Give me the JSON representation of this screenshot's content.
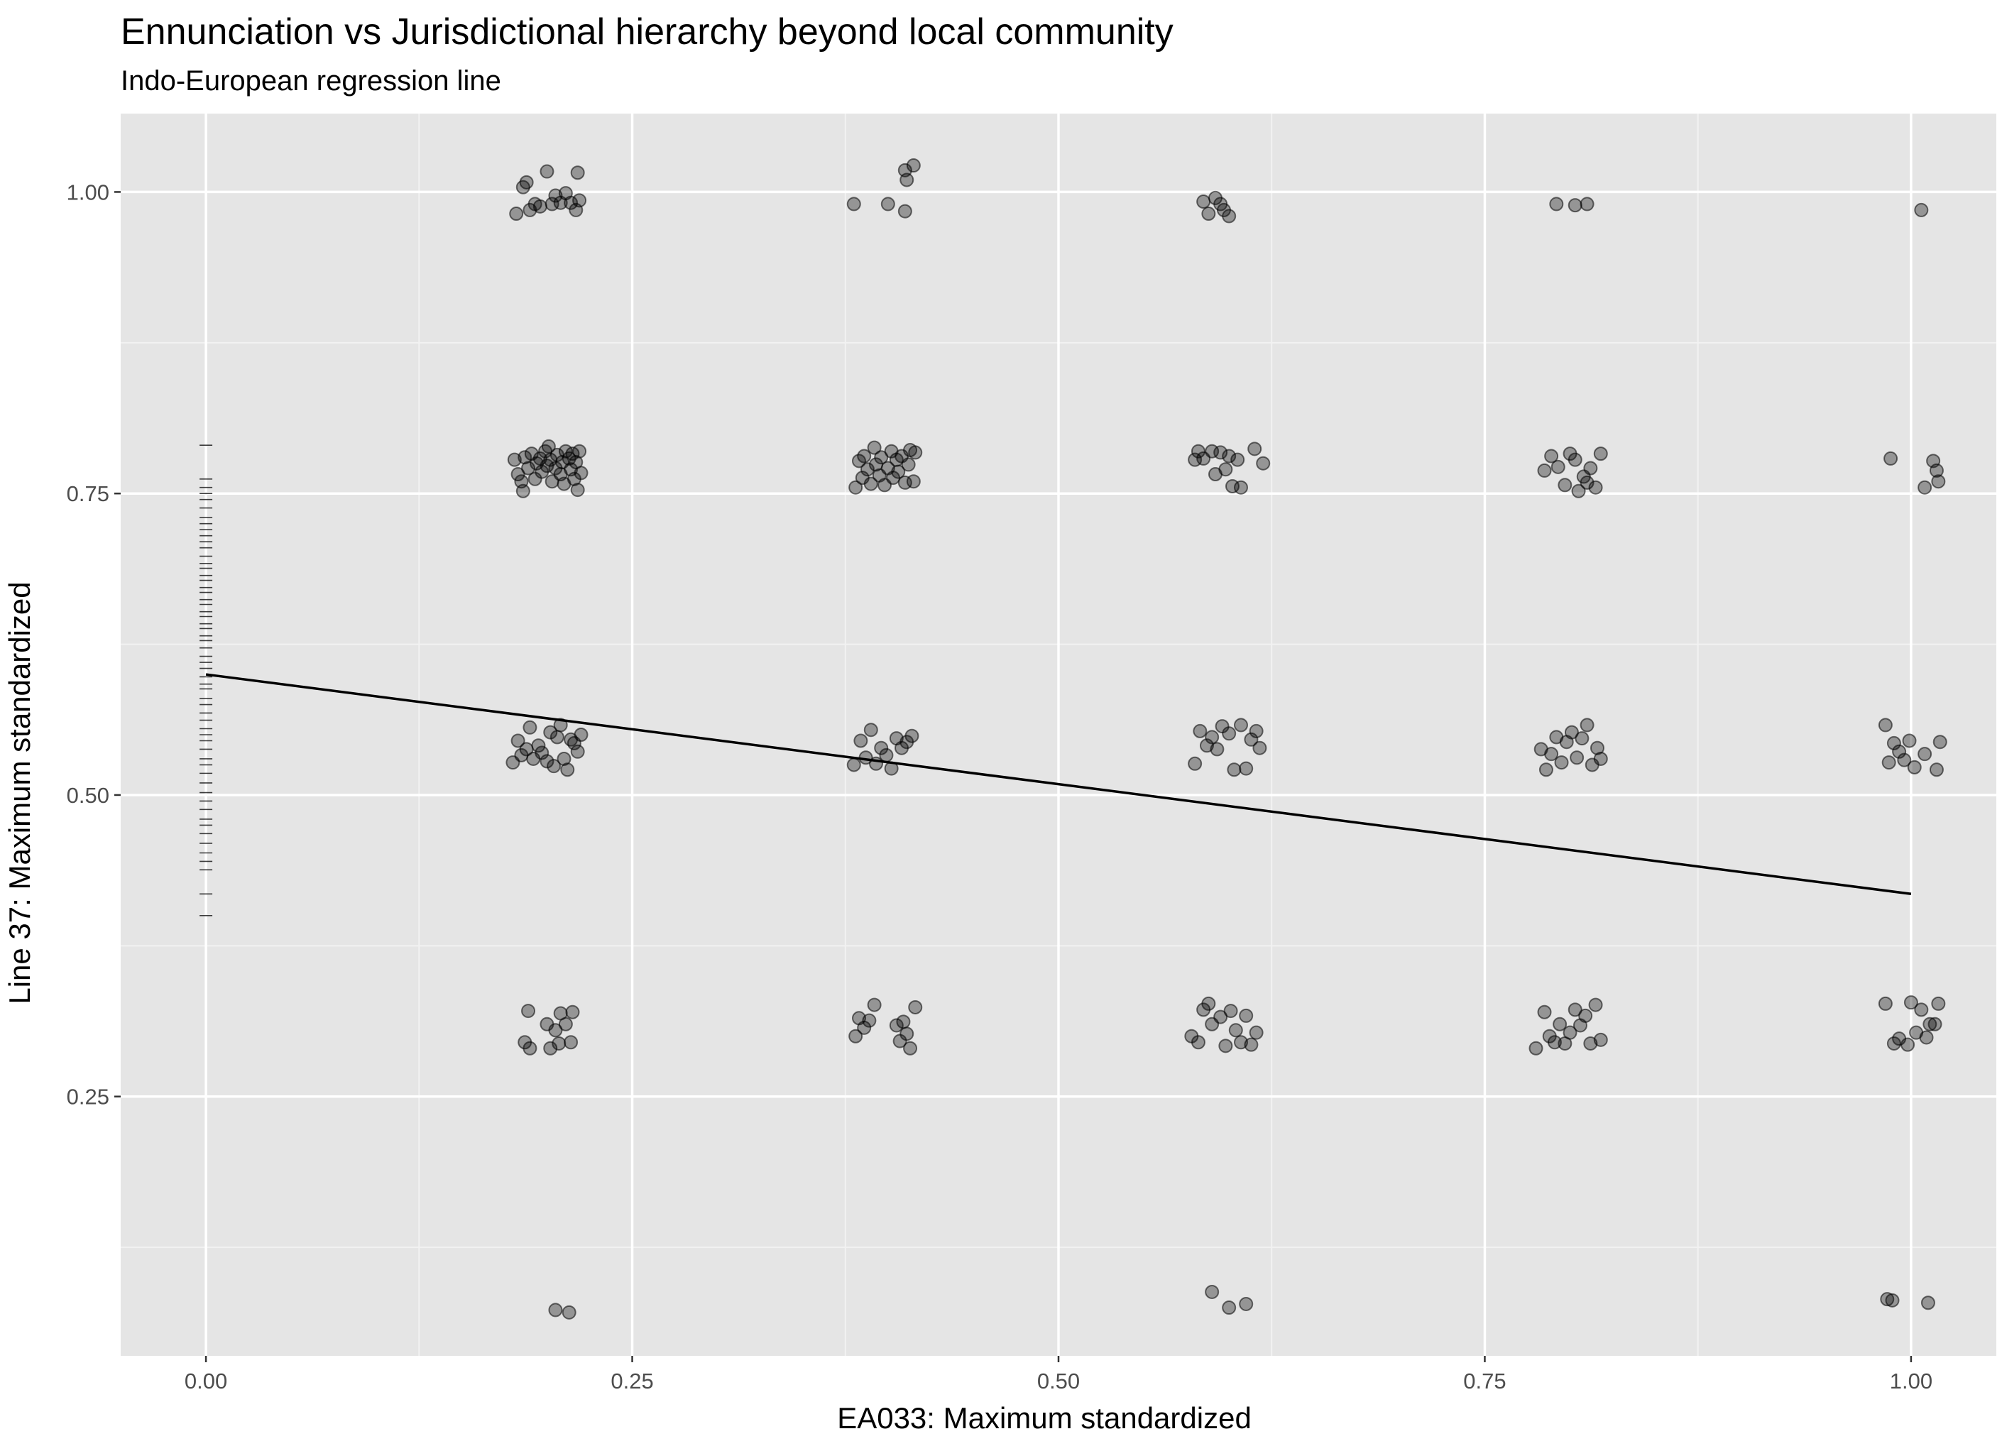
{
  "chart_data": {
    "type": "scatter",
    "title": "Ennunciation vs Jurisdictional hierarchy beyond local community",
    "subtitle": "Indo-European regression line",
    "xlabel": "EA033: Maximum standardized",
    "ylabel": "Line 37: Maximum standardized",
    "xlim": [
      -0.05,
      1.05
    ],
    "ylim": [
      0.035,
      1.065
    ],
    "x_ticks": [
      0.0,
      0.25,
      0.5,
      0.75,
      1.0
    ],
    "x_tick_labels": [
      "0.00",
      "0.25",
      "0.50",
      "0.75",
      "1.00"
    ],
    "y_ticks": [
      0.25,
      0.5,
      0.75,
      1.0
    ],
    "y_tick_labels": [
      "0.25",
      "0.50",
      "0.75",
      "1.00"
    ],
    "grid": true,
    "background": "#e5e5e5",
    "point_color": "#000000",
    "point_alpha": 0.35,
    "line_color": "#000000",
    "regression_line": {
      "x": [
        0.0,
        1.0
      ],
      "y": [
        0.6,
        0.418
      ]
    },
    "rug_y": [
      0.4,
      0.418,
      0.438,
      0.445,
      0.452,
      0.46,
      0.468,
      0.475,
      0.48,
      0.488,
      0.495,
      0.502,
      0.51,
      0.518,
      0.525,
      0.53,
      0.538,
      0.545,
      0.55,
      0.555,
      0.562,
      0.568,
      0.575,
      0.58,
      0.588,
      0.592,
      0.598,
      0.605,
      0.61,
      0.615,
      0.622,
      0.628,
      0.632,
      0.638,
      0.642,
      0.648,
      0.652,
      0.658,
      0.662,
      0.668,
      0.672,
      0.678,
      0.682,
      0.688,
      0.692,
      0.698,
      0.705,
      0.71,
      0.715,
      0.72,
      0.725,
      0.73,
      0.738,
      0.745,
      0.75,
      0.755,
      0.762,
      0.79
    ],
    "points": [
      {
        "x": 0.182,
        "y": 0.982
      },
      {
        "x": 0.186,
        "y": 1.004
      },
      {
        "x": 0.188,
        "y": 1.008
      },
      {
        "x": 0.19,
        "y": 0.985
      },
      {
        "x": 0.193,
        "y": 0.99
      },
      {
        "x": 0.196,
        "y": 0.988
      },
      {
        "x": 0.2,
        "y": 1.017
      },
      {
        "x": 0.203,
        "y": 0.99
      },
      {
        "x": 0.205,
        "y": 0.997
      },
      {
        "x": 0.208,
        "y": 0.991
      },
      {
        "x": 0.211,
        "y": 0.999
      },
      {
        "x": 0.214,
        "y": 0.991
      },
      {
        "x": 0.217,
        "y": 0.985
      },
      {
        "x": 0.218,
        "y": 1.016
      },
      {
        "x": 0.219,
        "y": 0.993
      },
      {
        "x": 0.38,
        "y": 0.99
      },
      {
        "x": 0.4,
        "y": 0.99
      },
      {
        "x": 0.41,
        "y": 0.984
      },
      {
        "x": 0.41,
        "y": 1.018
      },
      {
        "x": 0.411,
        "y": 1.01
      },
      {
        "x": 0.415,
        "y": 1.022
      },
      {
        "x": 0.585,
        "y": 0.992
      },
      {
        "x": 0.588,
        "y": 0.982
      },
      {
        "x": 0.592,
        "y": 0.995
      },
      {
        "x": 0.595,
        "y": 0.99
      },
      {
        "x": 0.597,
        "y": 0.985
      },
      {
        "x": 0.6,
        "y": 0.98
      },
      {
        "x": 0.792,
        "y": 0.99
      },
      {
        "x": 0.803,
        "y": 0.989
      },
      {
        "x": 0.81,
        "y": 0.99
      },
      {
        "x": 1.006,
        "y": 0.985
      },
      {
        "x": 0.181,
        "y": 0.778
      },
      {
        "x": 0.183,
        "y": 0.766
      },
      {
        "x": 0.185,
        "y": 0.76
      },
      {
        "x": 0.186,
        "y": 0.752
      },
      {
        "x": 0.187,
        "y": 0.78
      },
      {
        "x": 0.189,
        "y": 0.771
      },
      {
        "x": 0.191,
        "y": 0.783
      },
      {
        "x": 0.193,
        "y": 0.762
      },
      {
        "x": 0.194,
        "y": 0.775
      },
      {
        "x": 0.196,
        "y": 0.779
      },
      {
        "x": 0.197,
        "y": 0.768
      },
      {
        "x": 0.199,
        "y": 0.785
      },
      {
        "x": 0.2,
        "y": 0.773
      },
      {
        "x": 0.201,
        "y": 0.789
      },
      {
        "x": 0.202,
        "y": 0.778
      },
      {
        "x": 0.203,
        "y": 0.76
      },
      {
        "x": 0.205,
        "y": 0.771
      },
      {
        "x": 0.206,
        "y": 0.782
      },
      {
        "x": 0.208,
        "y": 0.766
      },
      {
        "x": 0.209,
        "y": 0.776
      },
      {
        "x": 0.21,
        "y": 0.758
      },
      {
        "x": 0.211,
        "y": 0.785
      },
      {
        "x": 0.213,
        "y": 0.779
      },
      {
        "x": 0.214,
        "y": 0.77
      },
      {
        "x": 0.215,
        "y": 0.783
      },
      {
        "x": 0.216,
        "y": 0.762
      },
      {
        "x": 0.217,
        "y": 0.776
      },
      {
        "x": 0.218,
        "y": 0.753
      },
      {
        "x": 0.219,
        "y": 0.785
      },
      {
        "x": 0.22,
        "y": 0.767
      },
      {
        "x": 0.381,
        "y": 0.755
      },
      {
        "x": 0.383,
        "y": 0.777
      },
      {
        "x": 0.385,
        "y": 0.763
      },
      {
        "x": 0.386,
        "y": 0.781
      },
      {
        "x": 0.388,
        "y": 0.77
      },
      {
        "x": 0.39,
        "y": 0.758
      },
      {
        "x": 0.392,
        "y": 0.788
      },
      {
        "x": 0.393,
        "y": 0.774
      },
      {
        "x": 0.395,
        "y": 0.765
      },
      {
        "x": 0.396,
        "y": 0.78
      },
      {
        "x": 0.398,
        "y": 0.757
      },
      {
        "x": 0.4,
        "y": 0.771
      },
      {
        "x": 0.402,
        "y": 0.785
      },
      {
        "x": 0.403,
        "y": 0.763
      },
      {
        "x": 0.405,
        "y": 0.778
      },
      {
        "x": 0.406,
        "y": 0.768
      },
      {
        "x": 0.408,
        "y": 0.781
      },
      {
        "x": 0.41,
        "y": 0.759
      },
      {
        "x": 0.412,
        "y": 0.774
      },
      {
        "x": 0.413,
        "y": 0.786
      },
      {
        "x": 0.415,
        "y": 0.76
      },
      {
        "x": 0.416,
        "y": 0.784
      },
      {
        "x": 0.58,
        "y": 0.778
      },
      {
        "x": 0.582,
        "y": 0.785
      },
      {
        "x": 0.585,
        "y": 0.779
      },
      {
        "x": 0.59,
        "y": 0.785
      },
      {
        "x": 0.592,
        "y": 0.766
      },
      {
        "x": 0.595,
        "y": 0.784
      },
      {
        "x": 0.598,
        "y": 0.77
      },
      {
        "x": 0.6,
        "y": 0.781
      },
      {
        "x": 0.602,
        "y": 0.756
      },
      {
        "x": 0.605,
        "y": 0.778
      },
      {
        "x": 0.607,
        "y": 0.755
      },
      {
        "x": 0.615,
        "y": 0.787
      },
      {
        "x": 0.62,
        "y": 0.775
      },
      {
        "x": 0.785,
        "y": 0.769
      },
      {
        "x": 0.789,
        "y": 0.781
      },
      {
        "x": 0.793,
        "y": 0.772
      },
      {
        "x": 0.797,
        "y": 0.757
      },
      {
        "x": 0.8,
        "y": 0.783
      },
      {
        "x": 0.803,
        "y": 0.778
      },
      {
        "x": 0.805,
        "y": 0.752
      },
      {
        "x": 0.808,
        "y": 0.764
      },
      {
        "x": 0.81,
        "y": 0.759
      },
      {
        "x": 0.812,
        "y": 0.771
      },
      {
        "x": 0.815,
        "y": 0.755
      },
      {
        "x": 0.818,
        "y": 0.783
      },
      {
        "x": 0.988,
        "y": 0.779
      },
      {
        "x": 1.008,
        "y": 0.755
      },
      {
        "x": 1.013,
        "y": 0.777
      },
      {
        "x": 1.015,
        "y": 0.769
      },
      {
        "x": 1.016,
        "y": 0.76
      },
      {
        "x": 0.18,
        "y": 0.527
      },
      {
        "x": 0.183,
        "y": 0.545
      },
      {
        "x": 0.185,
        "y": 0.533
      },
      {
        "x": 0.188,
        "y": 0.538
      },
      {
        "x": 0.19,
        "y": 0.556
      },
      {
        "x": 0.192,
        "y": 0.53
      },
      {
        "x": 0.195,
        "y": 0.541
      },
      {
        "x": 0.197,
        "y": 0.535
      },
      {
        "x": 0.2,
        "y": 0.528
      },
      {
        "x": 0.202,
        "y": 0.552
      },
      {
        "x": 0.204,
        "y": 0.524
      },
      {
        "x": 0.206,
        "y": 0.548
      },
      {
        "x": 0.208,
        "y": 0.558
      },
      {
        "x": 0.21,
        "y": 0.53
      },
      {
        "x": 0.212,
        "y": 0.521
      },
      {
        "x": 0.214,
        "y": 0.546
      },
      {
        "x": 0.216,
        "y": 0.543
      },
      {
        "x": 0.218,
        "y": 0.536
      },
      {
        "x": 0.22,
        "y": 0.55
      },
      {
        "x": 0.38,
        "y": 0.525
      },
      {
        "x": 0.384,
        "y": 0.545
      },
      {
        "x": 0.387,
        "y": 0.531
      },
      {
        "x": 0.39,
        "y": 0.554
      },
      {
        "x": 0.393,
        "y": 0.526
      },
      {
        "x": 0.396,
        "y": 0.539
      },
      {
        "x": 0.399,
        "y": 0.533
      },
      {
        "x": 0.402,
        "y": 0.522
      },
      {
        "x": 0.405,
        "y": 0.547
      },
      {
        "x": 0.408,
        "y": 0.539
      },
      {
        "x": 0.411,
        "y": 0.544
      },
      {
        "x": 0.414,
        "y": 0.549
      },
      {
        "x": 0.58,
        "y": 0.526
      },
      {
        "x": 0.583,
        "y": 0.553
      },
      {
        "x": 0.587,
        "y": 0.541
      },
      {
        "x": 0.59,
        "y": 0.548
      },
      {
        "x": 0.593,
        "y": 0.538
      },
      {
        "x": 0.596,
        "y": 0.557
      },
      {
        "x": 0.6,
        "y": 0.551
      },
      {
        "x": 0.603,
        "y": 0.521
      },
      {
        "x": 0.607,
        "y": 0.558
      },
      {
        "x": 0.61,
        "y": 0.522
      },
      {
        "x": 0.613,
        "y": 0.546
      },
      {
        "x": 0.616,
        "y": 0.553
      },
      {
        "x": 0.618,
        "y": 0.539
      },
      {
        "x": 0.783,
        "y": 0.538
      },
      {
        "x": 0.786,
        "y": 0.521
      },
      {
        "x": 0.789,
        "y": 0.534
      },
      {
        "x": 0.792,
        "y": 0.548
      },
      {
        "x": 0.795,
        "y": 0.527
      },
      {
        "x": 0.798,
        "y": 0.544
      },
      {
        "x": 0.801,
        "y": 0.552
      },
      {
        "x": 0.804,
        "y": 0.531
      },
      {
        "x": 0.807,
        "y": 0.547
      },
      {
        "x": 0.81,
        "y": 0.558
      },
      {
        "x": 0.813,
        "y": 0.525
      },
      {
        "x": 0.816,
        "y": 0.539
      },
      {
        "x": 0.818,
        "y": 0.53
      },
      {
        "x": 0.985,
        "y": 0.558
      },
      {
        "x": 0.987,
        "y": 0.527
      },
      {
        "x": 0.99,
        "y": 0.543
      },
      {
        "x": 0.993,
        "y": 0.536
      },
      {
        "x": 0.996,
        "y": 0.529
      },
      {
        "x": 0.999,
        "y": 0.545
      },
      {
        "x": 1.002,
        "y": 0.523
      },
      {
        "x": 1.008,
        "y": 0.534
      },
      {
        "x": 1.015,
        "y": 0.521
      },
      {
        "x": 1.017,
        "y": 0.544
      },
      {
        "x": 0.187,
        "y": 0.295
      },
      {
        "x": 0.19,
        "y": 0.29
      },
      {
        "x": 0.189,
        "y": 0.321
      },
      {
        "x": 0.2,
        "y": 0.31
      },
      {
        "x": 0.202,
        "y": 0.29
      },
      {
        "x": 0.205,
        "y": 0.305
      },
      {
        "x": 0.207,
        "y": 0.294
      },
      {
        "x": 0.208,
        "y": 0.319
      },
      {
        "x": 0.211,
        "y": 0.31
      },
      {
        "x": 0.214,
        "y": 0.295
      },
      {
        "x": 0.215,
        "y": 0.32
      },
      {
        "x": 0.381,
        "y": 0.3
      },
      {
        "x": 0.383,
        "y": 0.315
      },
      {
        "x": 0.386,
        "y": 0.307
      },
      {
        "x": 0.389,
        "y": 0.313
      },
      {
        "x": 0.392,
        "y": 0.326
      },
      {
        "x": 0.405,
        "y": 0.309
      },
      {
        "x": 0.407,
        "y": 0.296
      },
      {
        "x": 0.409,
        "y": 0.312
      },
      {
        "x": 0.411,
        "y": 0.302
      },
      {
        "x": 0.413,
        "y": 0.29
      },
      {
        "x": 0.416,
        "y": 0.324
      },
      {
        "x": 0.578,
        "y": 0.3
      },
      {
        "x": 0.582,
        "y": 0.295
      },
      {
        "x": 0.585,
        "y": 0.322
      },
      {
        "x": 0.588,
        "y": 0.327
      },
      {
        "x": 0.59,
        "y": 0.31
      },
      {
        "x": 0.595,
        "y": 0.316
      },
      {
        "x": 0.598,
        "y": 0.292
      },
      {
        "x": 0.601,
        "y": 0.321
      },
      {
        "x": 0.604,
        "y": 0.305
      },
      {
        "x": 0.607,
        "y": 0.295
      },
      {
        "x": 0.61,
        "y": 0.317
      },
      {
        "x": 0.613,
        "y": 0.293
      },
      {
        "x": 0.616,
        "y": 0.303
      },
      {
        "x": 0.78,
        "y": 0.29
      },
      {
        "x": 0.785,
        "y": 0.32
      },
      {
        "x": 0.788,
        "y": 0.3
      },
      {
        "x": 0.791,
        "y": 0.295
      },
      {
        "x": 0.794,
        "y": 0.31
      },
      {
        "x": 0.797,
        "y": 0.294
      },
      {
        "x": 0.8,
        "y": 0.303
      },
      {
        "x": 0.803,
        "y": 0.322
      },
      {
        "x": 0.806,
        "y": 0.309
      },
      {
        "x": 0.809,
        "y": 0.317
      },
      {
        "x": 0.812,
        "y": 0.294
      },
      {
        "x": 0.815,
        "y": 0.326
      },
      {
        "x": 0.818,
        "y": 0.297
      },
      {
        "x": 0.985,
        "y": 0.327
      },
      {
        "x": 0.99,
        "y": 0.294
      },
      {
        "x": 0.993,
        "y": 0.298
      },
      {
        "x": 0.998,
        "y": 0.293
      },
      {
        "x": 1.0,
        "y": 0.328
      },
      {
        "x": 1.003,
        "y": 0.303
      },
      {
        "x": 1.006,
        "y": 0.322
      },
      {
        "x": 1.009,
        "y": 0.299
      },
      {
        "x": 1.011,
        "y": 0.31
      },
      {
        "x": 1.014,
        "y": 0.31
      },
      {
        "x": 1.016,
        "y": 0.327
      },
      {
        "x": 0.205,
        "y": 0.073
      },
      {
        "x": 0.213,
        "y": 0.071
      },
      {
        "x": 0.59,
        "y": 0.088
      },
      {
        "x": 0.6,
        "y": 0.075
      },
      {
        "x": 0.61,
        "y": 0.078
      },
      {
        "x": 0.986,
        "y": 0.082
      },
      {
        "x": 0.989,
        "y": 0.081
      },
      {
        "x": 1.01,
        "y": 0.079
      }
    ]
  }
}
